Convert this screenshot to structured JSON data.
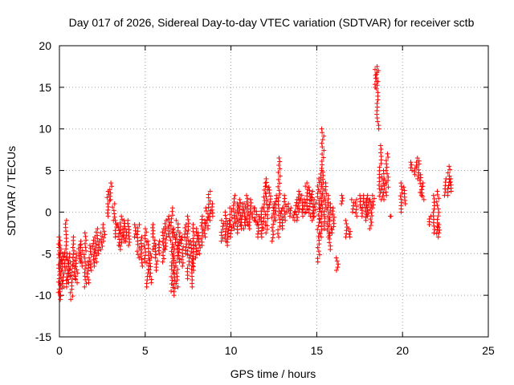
{
  "chart_data": {
    "type": "scatter",
    "title": "Day 017 of 2026, Sidereal Day-to-day VTEC variation (SDTVAR) for receiver sctb",
    "xlabel": "GPS time / hours",
    "ylabel": "SDTVAR / TECUs",
    "xlim": [
      0,
      25
    ],
    "ylim": [
      -15,
      20
    ],
    "xticks": [
      "0",
      "5",
      "10",
      "15",
      "20",
      "25"
    ],
    "yticks": [
      "-15",
      "-10",
      "-5",
      "0",
      "5",
      "10",
      "15",
      "20"
    ],
    "grid": true,
    "marker": "+",
    "color": "#ff0000",
    "series": [
      {
        "name": "SDTVAR",
        "segments": [
          [
            0.0,
            -3.0,
            -10.5
          ],
          [
            0.1,
            -4.0,
            -10.0
          ],
          [
            0.2,
            -5.0,
            -9.0
          ],
          [
            0.35,
            -1.0,
            -7.0
          ],
          [
            0.45,
            -5.0,
            -9.0
          ],
          [
            0.55,
            -5.0,
            -8.5
          ],
          [
            0.7,
            -6.0,
            -10.5
          ],
          [
            0.85,
            -3.0,
            -8.0
          ],
          [
            1.0,
            -5.0,
            -8.5
          ],
          [
            1.15,
            -4.0,
            -6.0
          ],
          [
            1.3,
            -3.5,
            -6.5
          ],
          [
            1.5,
            -2.5,
            -9.0
          ],
          [
            1.65,
            -6.0,
            -8.5
          ],
          [
            1.8,
            -4.0,
            -7.0
          ],
          [
            2.0,
            -3.0,
            -6.5
          ],
          [
            2.15,
            -2.0,
            -6.0
          ],
          [
            2.3,
            -3.5,
            -5.0
          ],
          [
            2.45,
            -2.5,
            -4.5
          ],
          [
            2.6,
            -1.5,
            -3.5
          ],
          [
            2.85,
            2.5,
            -0.5
          ],
          [
            3.0,
            1.5,
            3.5
          ],
          [
            3.15,
            -1.0,
            1.0
          ],
          [
            3.3,
            -1.0,
            -3.0
          ],
          [
            3.45,
            -1.5,
            -4.0
          ],
          [
            3.6,
            -0.5,
            -4.5
          ],
          [
            3.75,
            -1.0,
            -3.5
          ],
          [
            3.9,
            -2.0,
            -3.5
          ],
          [
            4.05,
            -1.0,
            -4.0
          ],
          [
            4.4,
            -1.5,
            -3.0
          ],
          [
            4.6,
            -1.5,
            -5.5
          ],
          [
            4.8,
            -3.0,
            -6.5
          ],
          [
            5.0,
            -2.0,
            -6.0
          ],
          [
            5.15,
            -3.5,
            -9.0
          ],
          [
            5.3,
            -5.0,
            -8.5
          ],
          [
            5.5,
            -1.5,
            -4.5
          ],
          [
            5.65,
            -4.0,
            -7.0
          ],
          [
            5.85,
            -3.5,
            -5.0
          ],
          [
            6.05,
            -2.0,
            -6.0
          ],
          [
            6.2,
            -1.0,
            -4.5
          ],
          [
            6.4,
            -0.5,
            -3.0
          ],
          [
            6.55,
            0.5,
            -9.5
          ],
          [
            6.7,
            -2.0,
            -10.0
          ],
          [
            6.85,
            -1.0,
            -9.0
          ],
          [
            7.0,
            -2.5,
            -6.0
          ],
          [
            7.15,
            -3.0,
            -6.5
          ],
          [
            7.35,
            -1.5,
            -5.0
          ],
          [
            7.5,
            -0.5,
            -8.0
          ],
          [
            7.7,
            -3.5,
            -9.0
          ],
          [
            7.85,
            -1.5,
            -7.0
          ],
          [
            8.0,
            -2.0,
            -5.5
          ],
          [
            8.15,
            -2.5,
            -5.0
          ],
          [
            8.3,
            -0.5,
            -4.0
          ],
          [
            8.45,
            -1.0,
            -3.0
          ],
          [
            8.6,
            0.5,
            -2.0
          ],
          [
            8.75,
            2.5,
            -1.0
          ],
          [
            8.9,
            1.0,
            -0.5
          ],
          [
            9.5,
            -1.0,
            -3.5
          ],
          [
            9.7,
            0.0,
            -3.5
          ],
          [
            9.85,
            -1.0,
            -4.0
          ],
          [
            10.0,
            0.5,
            -3.0
          ],
          [
            10.2,
            2.0,
            -2.0
          ],
          [
            10.35,
            1.0,
            -2.5
          ],
          [
            10.5,
            1.5,
            -1.5
          ],
          [
            10.65,
            1.0,
            -2.0
          ],
          [
            10.8,
            1.0,
            -2.0
          ],
          [
            10.95,
            2.0,
            -1.5
          ],
          [
            11.1,
            1.5,
            -2.0
          ],
          [
            11.3,
            0.5,
            -1.0
          ],
          [
            11.45,
            0.5,
            -1.5
          ],
          [
            11.6,
            -0.5,
            -3.0
          ],
          [
            11.8,
            0.5,
            -3.0
          ],
          [
            11.95,
            3.5,
            -2.0
          ],
          [
            12.1,
            4.0,
            -2.5
          ],
          [
            12.25,
            3.0,
            0.5
          ],
          [
            12.45,
            1.0,
            -3.5
          ],
          [
            12.6,
            2.0,
            -1.0
          ],
          [
            12.8,
            6.5,
            -3.0
          ],
          [
            12.95,
            0.5,
            -2.0
          ],
          [
            13.1,
            2.0,
            -1.0
          ],
          [
            13.3,
            1.0,
            0.0
          ],
          [
            13.5,
            0.5,
            -0.5
          ],
          [
            13.65,
            0.0,
            -1.0
          ],
          [
            13.8,
            1.5,
            -1.0
          ],
          [
            13.95,
            2.5,
            0.0
          ],
          [
            14.1,
            2.0,
            0.0
          ],
          [
            14.25,
            1.5,
            -0.5
          ],
          [
            14.4,
            3.5,
            0.0
          ],
          [
            14.6,
            3.0,
            -0.5
          ],
          [
            14.75,
            2.5,
            -1.0
          ],
          [
            14.9,
            1.5,
            -0.5
          ],
          [
            15.1,
            4.0,
            -6.0
          ],
          [
            15.25,
            5.0,
            -3.0
          ],
          [
            15.35,
            10.0,
            0.5
          ],
          [
            15.5,
            3.5,
            -2.0
          ],
          [
            15.65,
            2.0,
            -3.0
          ],
          [
            15.8,
            1.0,
            -4.5
          ],
          [
            15.95,
            0.5,
            -2.5
          ],
          [
            16.2,
            -5.5,
            -7.0
          ],
          [
            16.45,
            2.0,
            1.0
          ],
          [
            16.7,
            -1.0,
            -3.0
          ],
          [
            16.9,
            -2.0,
            -3.0
          ],
          [
            17.1,
            1.5,
            0.0
          ],
          [
            17.3,
            1.5,
            -0.5
          ],
          [
            17.5,
            2.0,
            0.5
          ],
          [
            17.7,
            2.0,
            -0.5
          ],
          [
            17.85,
            1.5,
            -1.0
          ],
          [
            18.0,
            2.0,
            -0.5
          ],
          [
            18.15,
            1.5,
            -2.0
          ],
          [
            18.3,
            2.0,
            0.5
          ],
          [
            18.45,
            17.5,
            15.0
          ],
          [
            18.55,
            17.0,
            10.0
          ],
          [
            18.7,
            8.0,
            1.5
          ],
          [
            18.85,
            5.0,
            1.5
          ],
          [
            19.0,
            4.0,
            2.0
          ],
          [
            19.1,
            7.0,
            3.0
          ],
          [
            19.3,
            -0.5,
            -0.5
          ],
          [
            19.95,
            3.5,
            0.0
          ],
          [
            20.1,
            3.0,
            1.0
          ],
          [
            20.5,
            6.0,
            5.0
          ],
          [
            20.75,
            6.0,
            4.5
          ],
          [
            20.9,
            6.5,
            4.0
          ],
          [
            21.05,
            4.5,
            2.0
          ],
          [
            21.2,
            3.5,
            1.5
          ],
          [
            21.6,
            -0.5,
            -1.5
          ],
          [
            21.85,
            2.0,
            -2.5
          ],
          [
            22.05,
            2.5,
            -3.0
          ],
          [
            22.15,
            -1.5,
            -2.5
          ],
          [
            22.5,
            4.0,
            2.0
          ],
          [
            22.7,
            5.5,
            2.0
          ],
          [
            22.85,
            4.0,
            2.5
          ]
        ]
      }
    ]
  }
}
